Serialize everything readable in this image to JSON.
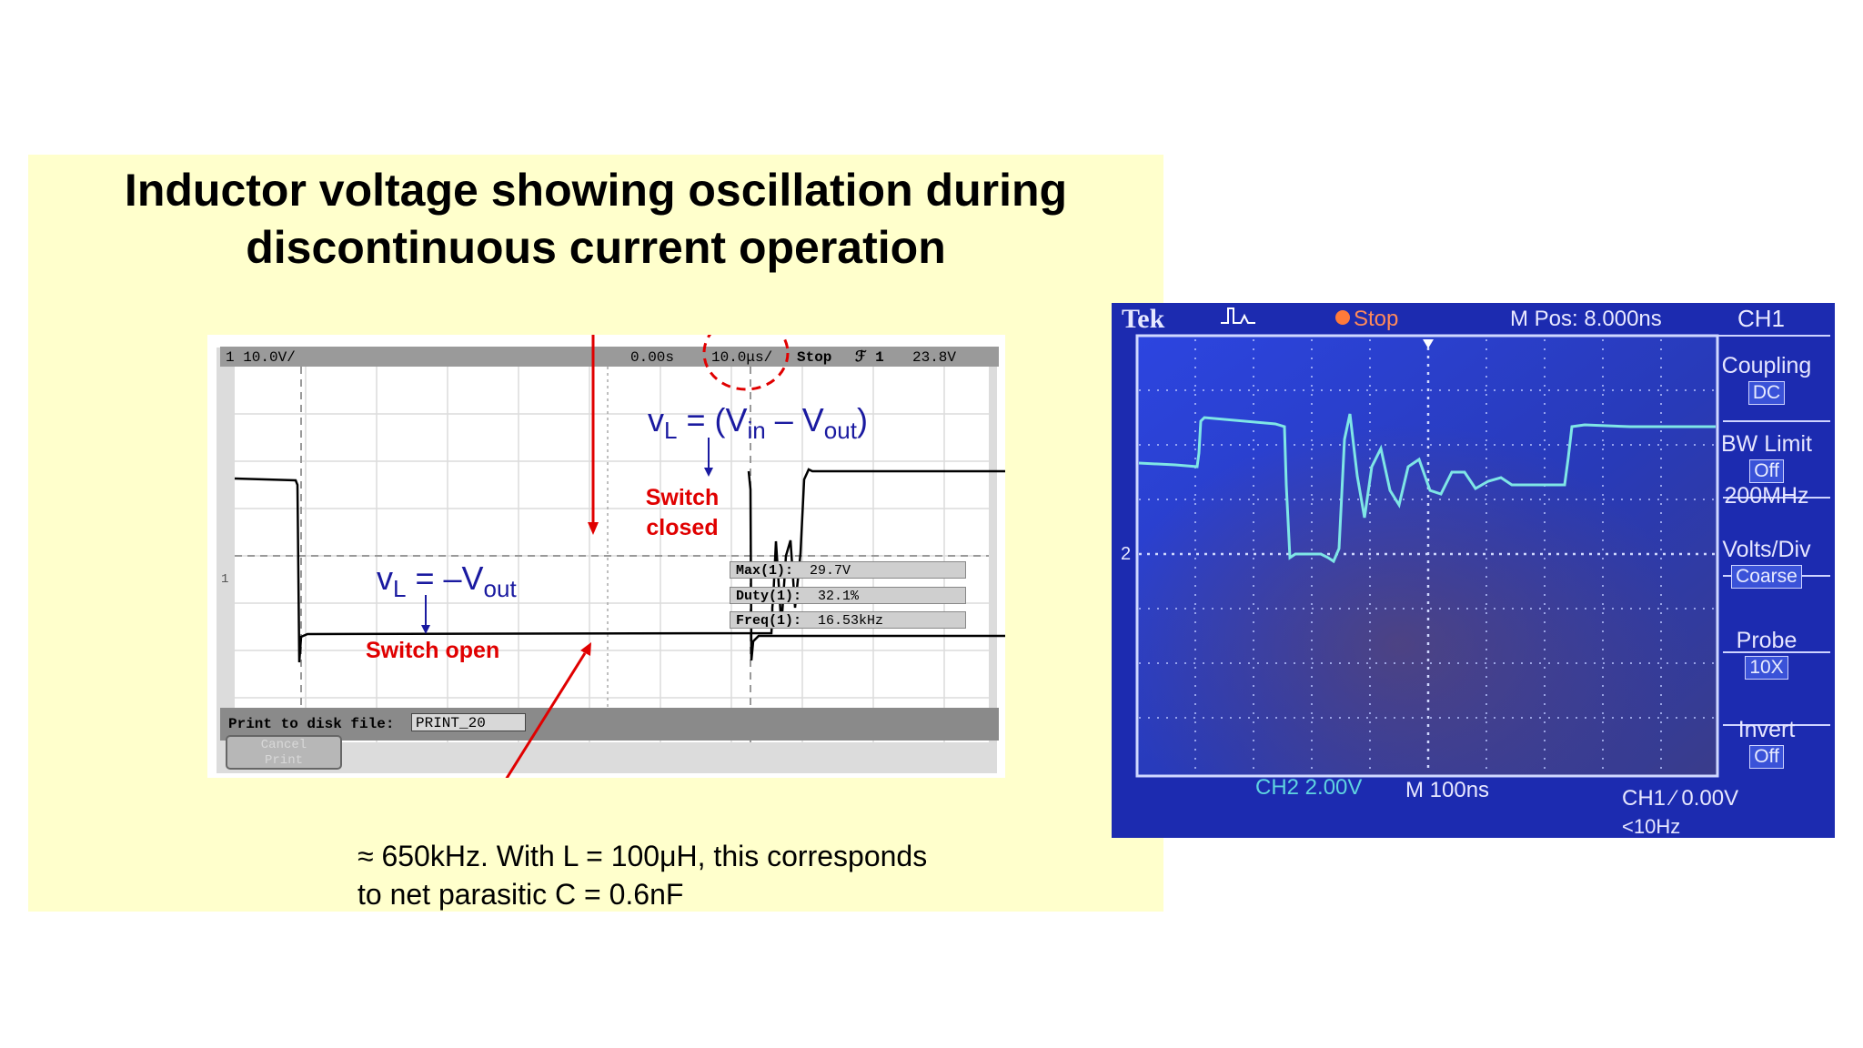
{
  "title": {
    "line1": "Inductor voltage showing oscillation during",
    "line2": "discontinuous current operation"
  },
  "scope_left": {
    "ch_scale": "1 10.0V/",
    "time_pos": "0.00s",
    "time_div": "10.0μs/",
    "status": "Stop",
    "trigger": "ℱ 1",
    "trigger_level": "23.8V",
    "ground_marker": "1",
    "print_label": "Print to disk file:",
    "print_file": "PRINT_20",
    "cancel_button": "Cancel\nPrint",
    "measurements": [
      {
        "label": "Max(1):",
        "value": "29.7V"
      },
      {
        "label": "Duty(1):",
        "value": "32.1%"
      },
      {
        "label": "Freq(1):",
        "value": "16.53kHz"
      }
    ],
    "annotations": {
      "vl_closed": {
        "v": "v",
        "sub_l": "L",
        "eq": " = (V",
        "sub_in": "in",
        "minus": " – V",
        "sub_out": "out",
        "close": ")"
      },
      "vl_open": {
        "v": "v",
        "sub_l": "L",
        "eq": " = –V",
        "sub_out": "out"
      },
      "switch_closed_1": "Switch",
      "switch_closed_2": "closed",
      "switch_open": "Switch open"
    }
  },
  "caption": {
    "line1": "≈ 650kHz.  With L = 100μH, this corresponds",
    "line2": "to net parasitic C = 0.6nF"
  },
  "scope_right": {
    "brand": "Tek",
    "status": "Stop",
    "m_pos": "M Pos: 8.000ns",
    "channel": "CH1",
    "ch2_marker": "2",
    "bottom_ch2": "CH2  2.00V",
    "bottom_m": "M 100ns",
    "bottom_ch1": "CH1 ∕ 0.00V",
    "bottom_freq": "<10Hz",
    "menu": [
      {
        "label": "Coupling",
        "value": "DC"
      },
      {
        "label": "BW Limit",
        "value": "Off",
        "extra": "200MHz"
      },
      {
        "label": "Volts/Div",
        "value": "Coarse"
      },
      {
        "label": "Probe",
        "value": "10X"
      },
      {
        "label": "Invert",
        "value": "Off"
      }
    ],
    "colors": {
      "screen": "#2438c8",
      "trace": "#7fe6e6",
      "bezel": "#1a2aa0"
    }
  }
}
